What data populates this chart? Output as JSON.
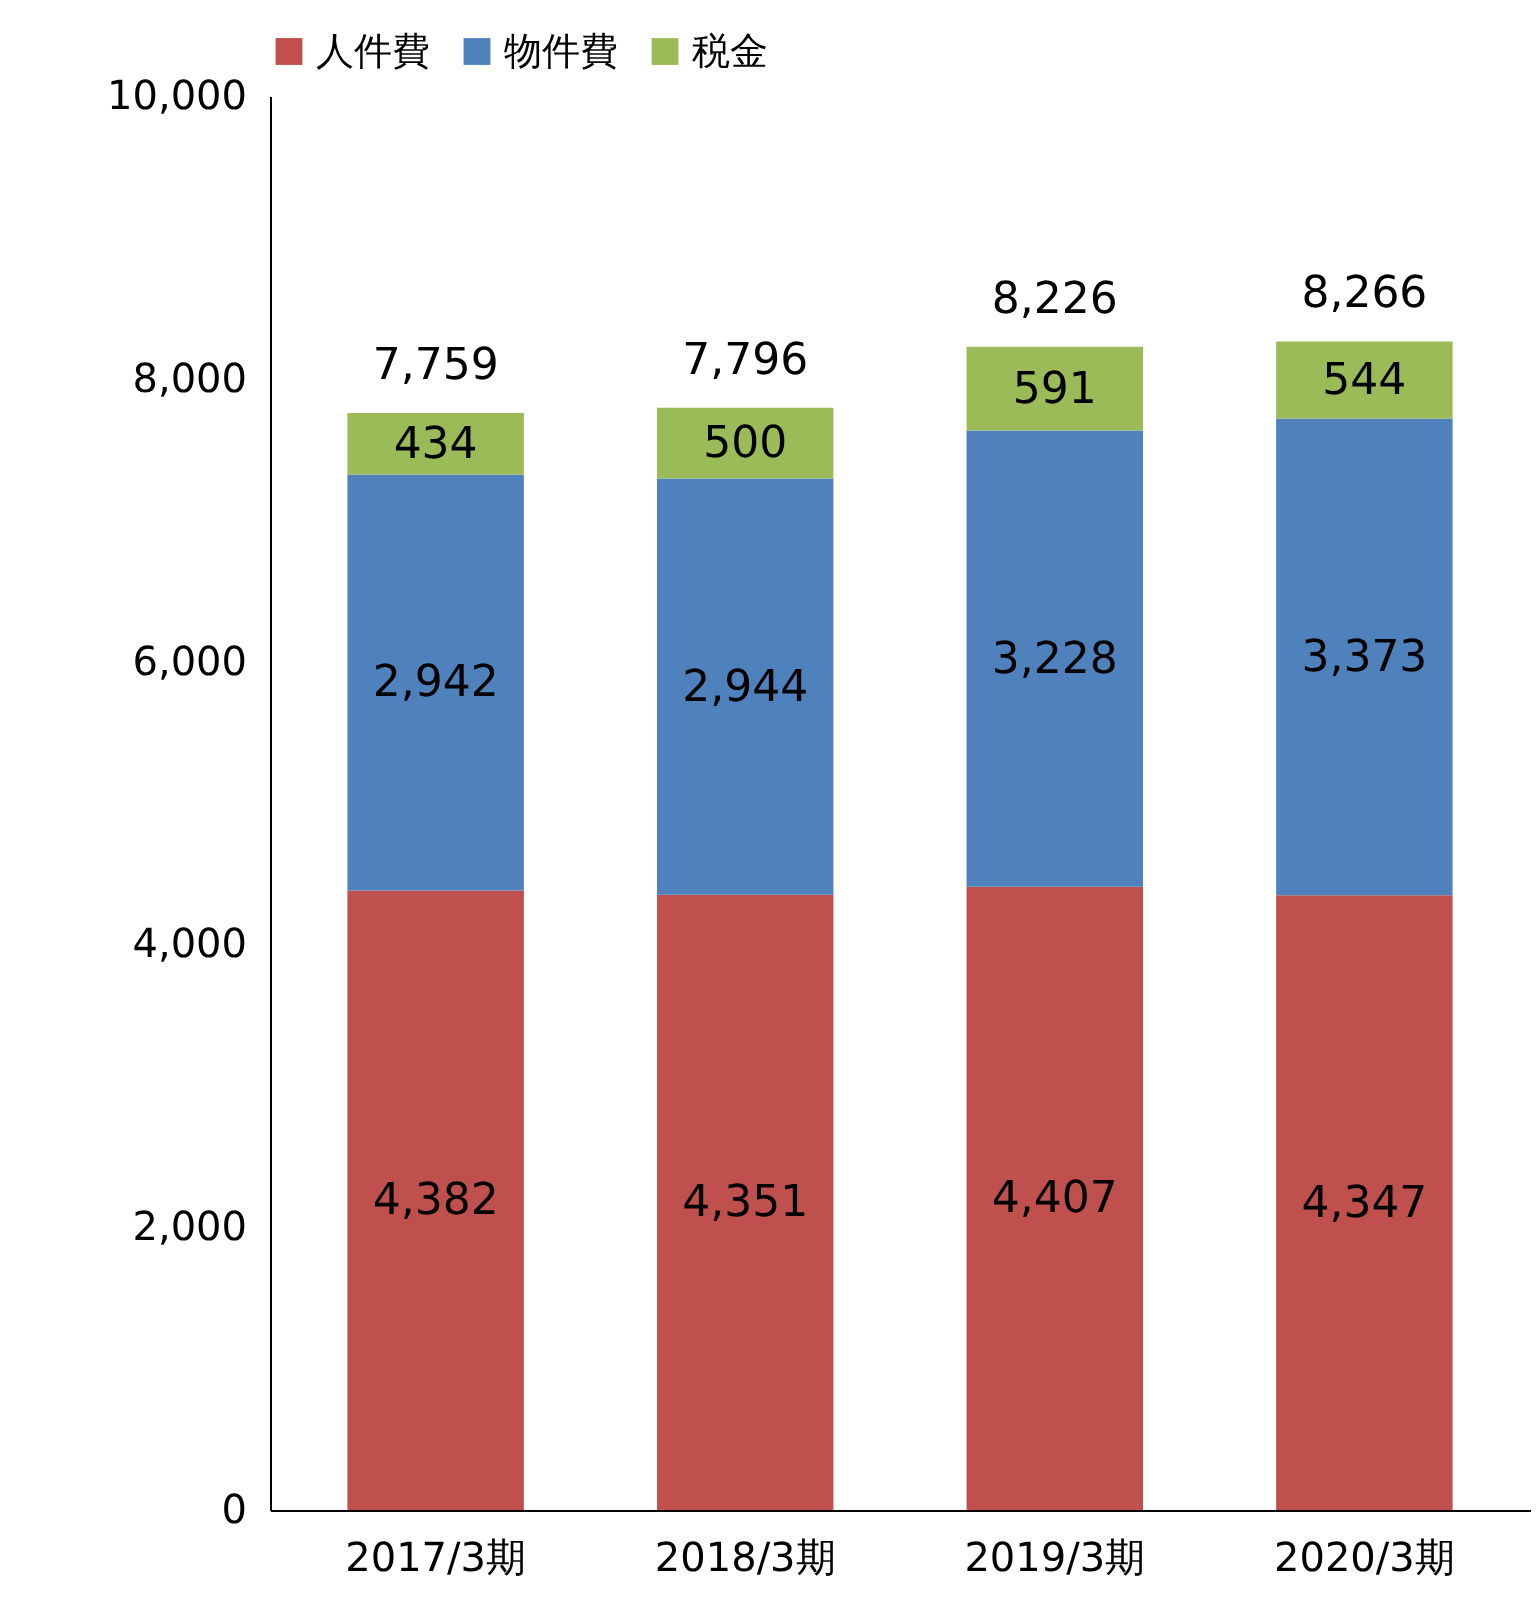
{
  "chart_data": {
    "type": "bar",
    "stacked": true,
    "categories": [
      "2017/3期",
      "2018/3期",
      "2019/3期",
      "2020/3期"
    ],
    "series": [
      {
        "name": "人件費",
        "color": "#c0504d",
        "values": [
          4382,
          4351,
          4407,
          4347
        ],
        "value_labels": [
          "4,382",
          "4,351",
          "4,407",
          "4,347"
        ]
      },
      {
        "name": "物件費",
        "color": "#4f81bd",
        "values": [
          2942,
          2944,
          3228,
          3373
        ],
        "value_labels": [
          "2,942",
          "2,944",
          "3,228",
          "3,373"
        ]
      },
      {
        "name": "税金",
        "color": "#9bbb59",
        "values": [
          434,
          500,
          591,
          544
        ],
        "value_labels": [
          "434",
          "500",
          "591",
          "544"
        ]
      }
    ],
    "totals": [
      "7,759",
      "7,796",
      "8,226",
      "8,266"
    ],
    "ylim": [
      0,
      10000
    ],
    "yticks": [
      {
        "value": 0,
        "label": "0"
      },
      {
        "value": 2000,
        "label": "2,000"
      },
      {
        "value": 4000,
        "label": "4,000"
      },
      {
        "value": 6000,
        "label": "6,000"
      },
      {
        "value": 8000,
        "label": "8,000"
      },
      {
        "value": 10000,
        "label": "10,000"
      }
    ],
    "grid": false,
    "legend": "top"
  }
}
